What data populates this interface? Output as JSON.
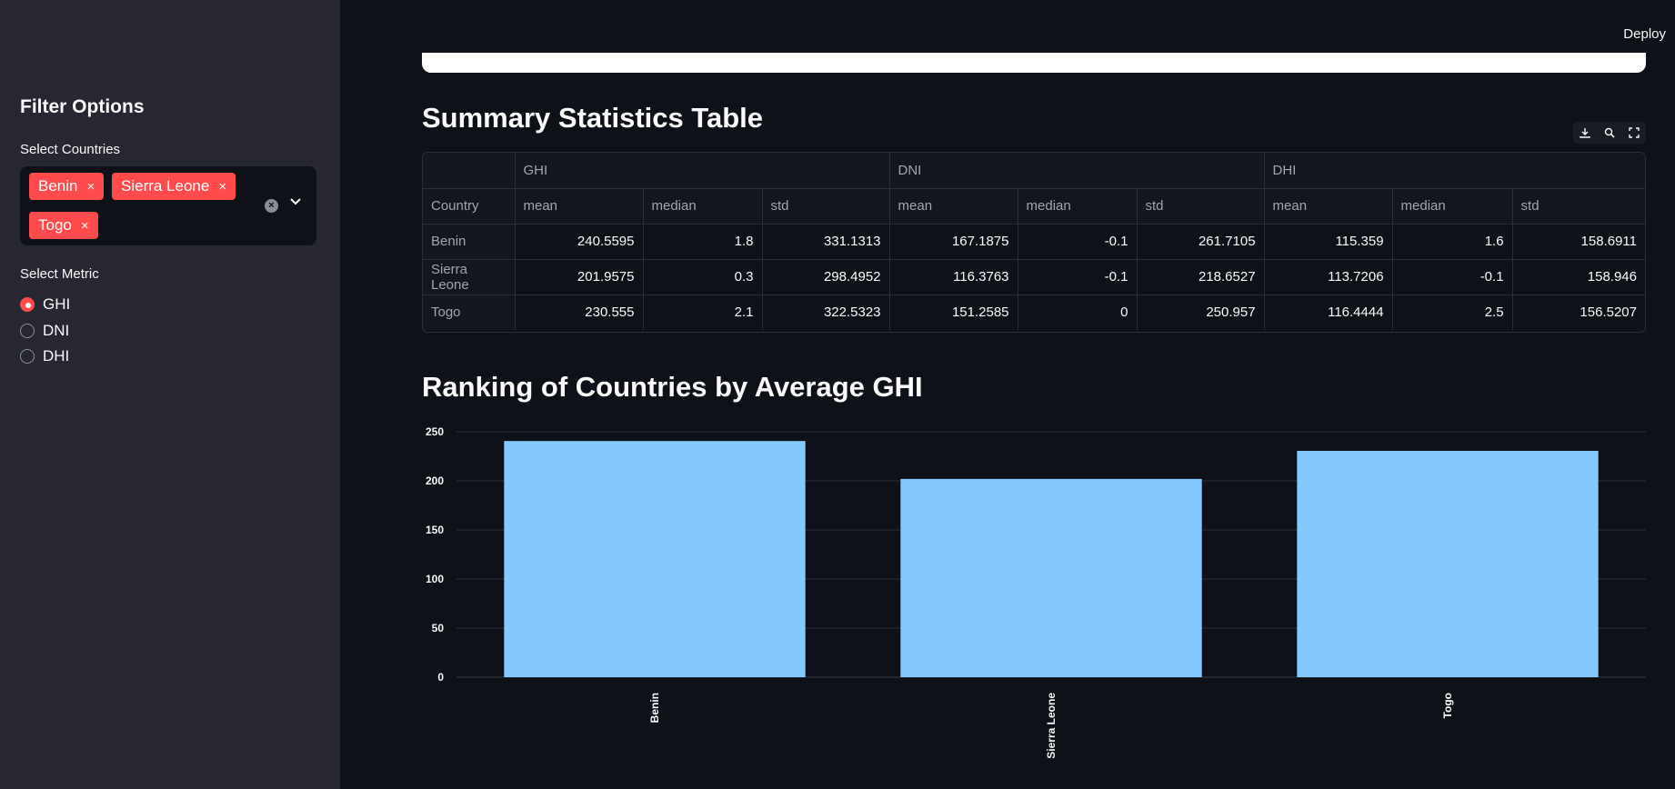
{
  "sidebar": {
    "title": "Filter Options",
    "countries_label": "Select Countries",
    "selected_countries": [
      "Benin",
      "Sierra Leone",
      "Togo"
    ],
    "chip_remove": "×",
    "clear_glyph": "×",
    "metric_label": "Select Metric",
    "metric_options": [
      "GHI",
      "DNI",
      "DHI"
    ],
    "selected_metric": "GHI"
  },
  "header": {
    "deploy_label": "Deploy"
  },
  "summary": {
    "title": "Summary Statistics Table",
    "group_headers": [
      "GHI",
      "DNI",
      "DHI"
    ],
    "index_header": "Country",
    "sub_headers": [
      "mean",
      "median",
      "std",
      "mean",
      "median",
      "std",
      "mean",
      "median",
      "std"
    ],
    "rows": [
      {
        "country": "Benin",
        "values": [
          "240.5595",
          "1.8",
          "331.1313",
          "167.1875",
          "-0.1",
          "261.7105",
          "115.359",
          "1.6",
          "158.6911"
        ]
      },
      {
        "country": "Sierra Leone",
        "values": [
          "201.9575",
          "0.3",
          "298.4952",
          "116.3763",
          "-0.1",
          "218.6527",
          "113.7206",
          "-0.1",
          "158.946"
        ]
      },
      {
        "country": "Togo",
        "values": [
          "230.555",
          "2.1",
          "322.5323",
          "151.2585",
          "0",
          "250.957",
          "116.4444",
          "2.5",
          "156.5207"
        ]
      }
    ]
  },
  "ranking": {
    "title": "Ranking of Countries by Average GHI"
  },
  "chart_data": {
    "type": "bar",
    "title": "",
    "xlabel": "",
    "ylabel": "",
    "categories": [
      "Benin",
      "Sierra Leone",
      "Togo"
    ],
    "values": [
      240.5595,
      201.9575,
      230.555
    ],
    "ylim": [
      0,
      250
    ],
    "yticks": [
      0,
      50,
      100,
      150,
      200,
      250
    ],
    "grid": true,
    "bar_color": "#83c9ff"
  },
  "colors": {
    "accent": "#ff4b4b",
    "sidebar_bg": "#262730",
    "main_bg": "#0e1117"
  }
}
